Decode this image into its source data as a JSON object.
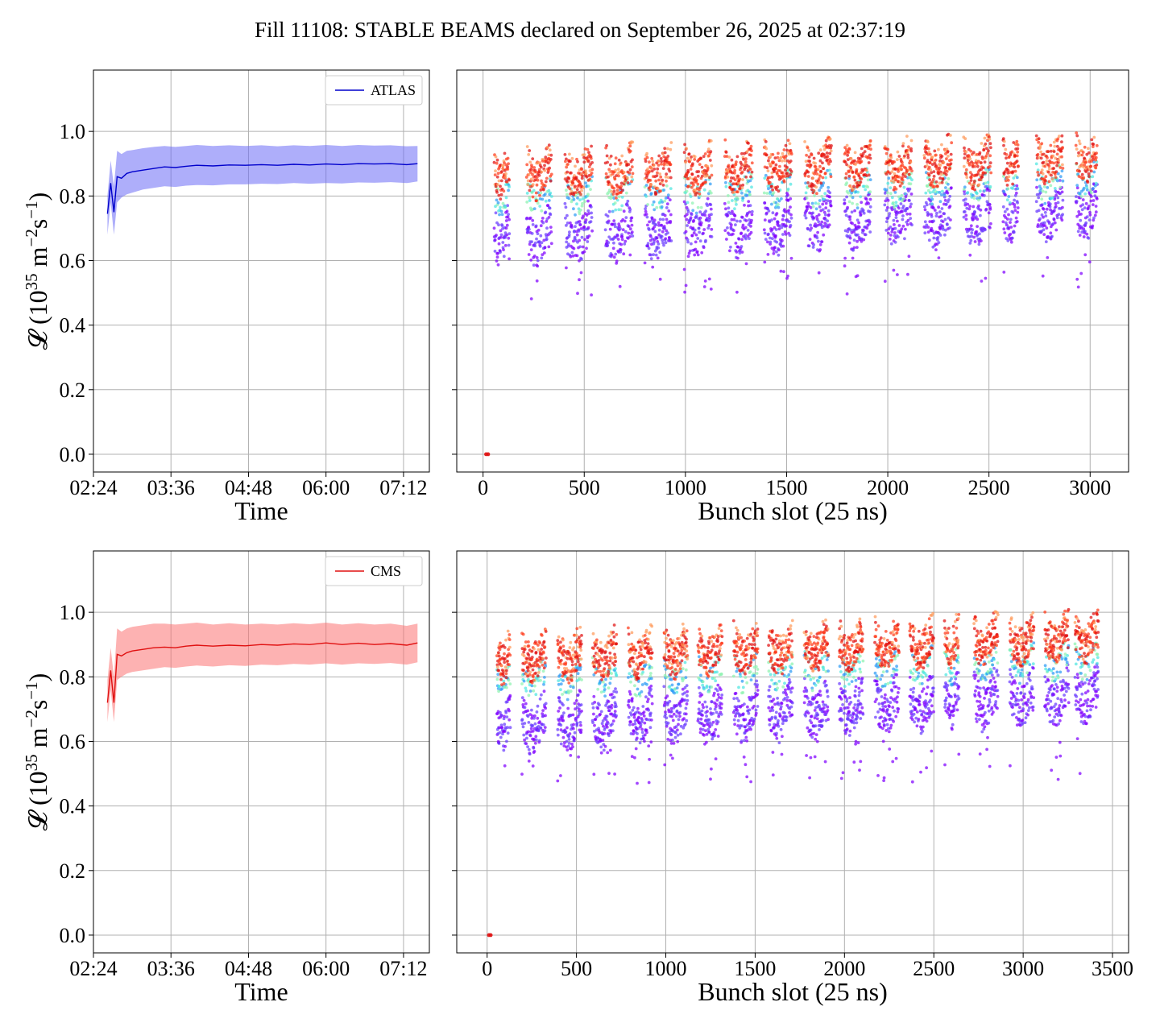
{
  "title": "Fill 11108: STABLE BEAMS declared on September 26, 2025 at 02:37:19",
  "colors": {
    "atlas": "#0000cc",
    "atlas_band": "#6b6bf5",
    "cms": "#e01010",
    "cms_band": "#fb7373",
    "grid": "#b0b0b0",
    "scatter_palette": [
      "#8000ff",
      "#6a3cff",
      "#2e9bf5",
      "#4de6e0",
      "#8ef3b0",
      "#c8e08a",
      "#ff9a5a",
      "#ff3a1a",
      "#e01010"
    ]
  },
  "chart_data": [
    {
      "id": "atlas_time",
      "type": "line",
      "experiment": "ATLAS",
      "legend": "ATLAS",
      "legend_position": "top-right",
      "xlabel": "Time",
      "ylabel": "𝓛 (10³⁵ m⁻²s⁻¹)",
      "ylabel_parts": {
        "pre": "𝓛 (10",
        "exp1": "35",
        "mid": " m",
        "exp2": "−2",
        "mid2": "s",
        "exp3": "−1",
        "post": ")"
      },
      "xlim": [
        "02:24",
        "07:36"
      ],
      "xticks": [
        "02:24",
        "03:36",
        "04:48",
        "06:00",
        "07:12"
      ],
      "ylim": [
        -0.055,
        1.19
      ],
      "yticks": [
        "0.0",
        "0.2",
        "0.4",
        "0.6",
        "0.8",
        "1.0"
      ],
      "grid": true,
      "series": [
        {
          "name": "ATLAS",
          "x": [
            "02:37",
            "02:40",
            "02:43",
            "02:46",
            "02:50",
            "02:55",
            "03:00",
            "03:10",
            "03:20",
            "03:30",
            "03:40",
            "03:50",
            "04:00",
            "04:15",
            "04:30",
            "04:45",
            "05:00",
            "05:15",
            "05:30",
            "05:45",
            "06:00",
            "06:15",
            "06:30",
            "06:45",
            "07:00",
            "07:15",
            "07:25"
          ],
          "y": [
            0.745,
            0.84,
            0.75,
            0.86,
            0.855,
            0.87,
            0.875,
            0.88,
            0.885,
            0.89,
            0.888,
            0.892,
            0.895,
            0.893,
            0.896,
            0.895,
            0.897,
            0.895,
            0.898,
            0.896,
            0.899,
            0.897,
            0.9,
            0.899,
            0.9,
            0.897,
            0.9
          ],
          "lower": [
            0.68,
            0.78,
            0.68,
            0.78,
            0.795,
            0.805,
            0.81,
            0.82,
            0.825,
            0.83,
            0.828,
            0.832,
            0.834,
            0.833,
            0.836,
            0.836,
            0.838,
            0.837,
            0.84,
            0.838,
            0.84,
            0.839,
            0.842,
            0.841,
            0.843,
            0.84,
            0.845
          ],
          "upper": [
            0.8,
            0.91,
            0.83,
            0.94,
            0.93,
            0.94,
            0.942,
            0.948,
            0.952,
            0.955,
            0.952,
            0.955,
            0.958,
            0.955,
            0.957,
            0.955,
            0.957,
            0.954,
            0.957,
            0.955,
            0.958,
            0.955,
            0.958,
            0.956,
            0.957,
            0.954,
            0.955
          ]
        }
      ]
    },
    {
      "id": "atlas_bunch",
      "type": "scatter",
      "experiment": "ATLAS",
      "xlabel": "Bunch slot (25 ns)",
      "xlim": [
        -130,
        3190
      ],
      "xticks": [
        0,
        500,
        1000,
        1500,
        2000,
        2500,
        3000
      ],
      "ylim": [
        -0.055,
        1.19
      ],
      "yticks": [
        0.0,
        0.2,
        0.4,
        0.6,
        0.8,
        1.0
      ],
      "grid": true,
      "color_scale": "rainbow",
      "trains": [
        {
          "start": 55,
          "end": 130
        },
        {
          "start": 215,
          "end": 340
        },
        {
          "start": 405,
          "end": 540
        },
        {
          "start": 605,
          "end": 740
        },
        {
          "start": 800,
          "end": 930
        },
        {
          "start": 995,
          "end": 1130
        },
        {
          "start": 1195,
          "end": 1330
        },
        {
          "start": 1390,
          "end": 1525
        },
        {
          "start": 1590,
          "end": 1720
        },
        {
          "start": 1785,
          "end": 1915
        },
        {
          "start": 1985,
          "end": 2120
        },
        {
          "start": 2180,
          "end": 2315
        },
        {
          "start": 2375,
          "end": 2510
        },
        {
          "start": 2570,
          "end": 2645
        },
        {
          "start": 2735,
          "end": 2865
        },
        {
          "start": 2930,
          "end": 3035
        }
      ],
      "band_levels": {
        "upper_start": 0.88,
        "upper_end": 0.93,
        "lower_start": 0.7,
        "lower_end": 0.79
      },
      "outliers_y_range": [
        0.48,
        0.62
      ],
      "isolated_points": [
        {
          "x": 15,
          "y": 0.0
        },
        {
          "x": 25,
          "y": 0.0
        }
      ]
    },
    {
      "id": "cms_time",
      "type": "line",
      "experiment": "CMS",
      "legend": "CMS",
      "legend_position": "top-right",
      "xlabel": "Time",
      "ylabel": "𝓛 (10³⁵ m⁻²s⁻¹)",
      "ylabel_parts": {
        "pre": "𝓛 (10",
        "exp1": "35",
        "mid": " m",
        "exp2": "−2",
        "mid2": "s",
        "exp3": "−1",
        "post": ")"
      },
      "xlim": [
        "02:24",
        "07:36"
      ],
      "xticks": [
        "02:24",
        "03:36",
        "04:48",
        "06:00",
        "07:12"
      ],
      "ylim": [
        -0.055,
        1.19
      ],
      "yticks": [
        "0.0",
        "0.2",
        "0.4",
        "0.6",
        "0.8",
        "1.0"
      ],
      "grid": true,
      "series": [
        {
          "name": "CMS",
          "x": [
            "02:37",
            "02:40",
            "02:43",
            "02:46",
            "02:50",
            "02:55",
            "03:00",
            "03:10",
            "03:20",
            "03:30",
            "03:40",
            "03:50",
            "04:00",
            "04:15",
            "04:30",
            "04:45",
            "05:00",
            "05:15",
            "05:30",
            "05:45",
            "06:00",
            "06:15",
            "06:30",
            "06:45",
            "07:00",
            "07:15",
            "07:25"
          ],
          "y": [
            0.72,
            0.82,
            0.72,
            0.87,
            0.865,
            0.875,
            0.88,
            0.885,
            0.89,
            0.892,
            0.89,
            0.895,
            0.898,
            0.895,
            0.898,
            0.896,
            0.9,
            0.898,
            0.902,
            0.9,
            0.905,
            0.9,
            0.904,
            0.9,
            0.903,
            0.898,
            0.905
          ],
          "lower": [
            0.66,
            0.76,
            0.66,
            0.79,
            0.8,
            0.81,
            0.815,
            0.82,
            0.825,
            0.83,
            0.828,
            0.832,
            0.835,
            0.832,
            0.836,
            0.834,
            0.838,
            0.836,
            0.84,
            0.838,
            0.842,
            0.838,
            0.842,
            0.84,
            0.843,
            0.838,
            0.845
          ],
          "upper": [
            0.79,
            0.89,
            0.8,
            0.95,
            0.94,
            0.95,
            0.955,
            0.96,
            0.965,
            0.965,
            0.962,
            0.965,
            0.968,
            0.962,
            0.966,
            0.962,
            0.965,
            0.962,
            0.966,
            0.963,
            0.968,
            0.962,
            0.966,
            0.962,
            0.965,
            0.958,
            0.965
          ]
        }
      ]
    },
    {
      "id": "cms_bunch",
      "type": "scatter",
      "experiment": "CMS",
      "xlabel": "Bunch slot (25 ns)",
      "xlim": [
        -170,
        3590
      ],
      "xticks": [
        0,
        500,
        1000,
        1500,
        2000,
        2500,
        3000,
        3500
      ],
      "ylim": [
        -0.055,
        1.19
      ],
      "yticks": [
        0.0,
        0.2,
        0.4,
        0.6,
        0.8,
        1.0
      ],
      "grid": true,
      "color_scale": "rainbow",
      "trains": [
        {
          "start": 55,
          "end": 130
        },
        {
          "start": 195,
          "end": 330
        },
        {
          "start": 395,
          "end": 530
        },
        {
          "start": 590,
          "end": 725
        },
        {
          "start": 790,
          "end": 925
        },
        {
          "start": 990,
          "end": 1120
        },
        {
          "start": 1180,
          "end": 1315
        },
        {
          "start": 1380,
          "end": 1515
        },
        {
          "start": 1575,
          "end": 1710
        },
        {
          "start": 1775,
          "end": 1910
        },
        {
          "start": 1970,
          "end": 2105
        },
        {
          "start": 2170,
          "end": 2305
        },
        {
          "start": 2365,
          "end": 2500
        },
        {
          "start": 2560,
          "end": 2640
        },
        {
          "start": 2725,
          "end": 2860
        },
        {
          "start": 2925,
          "end": 3060
        },
        {
          "start": 3120,
          "end": 3255
        },
        {
          "start": 3290,
          "end": 3420
        }
      ],
      "band_levels": {
        "upper_start": 0.87,
        "upper_end": 0.94,
        "lower_start": 0.68,
        "lower_end": 0.78
      },
      "outliers_y_range": [
        0.47,
        0.62
      ],
      "isolated_points": [
        {
          "x": 10,
          "y": 0.0
        },
        {
          "x": 20,
          "y": 0.0
        }
      ]
    }
  ]
}
